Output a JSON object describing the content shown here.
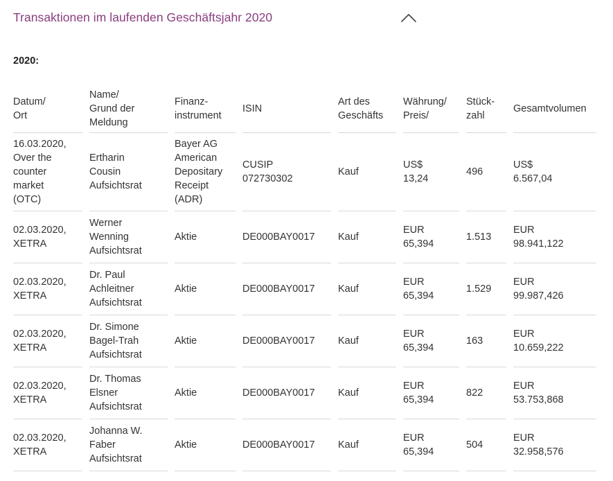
{
  "accordion": {
    "title": "Transaktionen im laufenden Geschäftsjahr 2020",
    "expanded": true,
    "accent_color": "#8a3d7f"
  },
  "section": {
    "year_label": "2020:"
  },
  "table": {
    "headers": [
      "Datum/\nOrt",
      "Name/\nGrund der\nMeldung",
      "Finanz-\ninstrument",
      "ISIN",
      "Art des\nGeschäfts",
      "Währung/\nPreis/",
      "Stück-\nzahl",
      "Gesamtvolumen"
    ],
    "rows": [
      {
        "date_place": "16.03.2020,\nOver the\ncounter\nmarket\n(OTC)",
        "name_reason": "Ertharin\nCousin\nAufsichtsrat",
        "instrument": "Bayer AG\nAmerican\nDepositary\nReceipt\n(ADR)",
        "isin": "CUSIP\n072730302",
        "type": "Kauf",
        "currency_price": "US$\n13,24",
        "quantity": "496",
        "total_volume": "US$\n6.567,04"
      },
      {
        "date_place": "02.03.2020,\nXETRA",
        "name_reason": "Werner\nWenning\nAufsichtsrat",
        "instrument": "Aktie",
        "isin": "DE000BAY0017",
        "type": "Kauf",
        "currency_price": "EUR\n65,394",
        "quantity": "1.513",
        "total_volume": "EUR\n98.941,122"
      },
      {
        "date_place": "02.03.2020,\nXETRA",
        "name_reason": "Dr. Paul\nAchleitner\nAufsichtsrat",
        "instrument": "Aktie",
        "isin": "DE000BAY0017",
        "type": "Kauf",
        "currency_price": "EUR\n65,394",
        "quantity": "1.529",
        "total_volume": "EUR\n99.987,426"
      },
      {
        "date_place": "02.03.2020,\nXETRA",
        "name_reason": "Dr. Simone\nBagel-Trah\nAufsichtsrat",
        "instrument": "Aktie",
        "isin": "DE000BAY0017",
        "type": "Kauf",
        "currency_price": "EUR\n65,394",
        "quantity": "163",
        "total_volume": "EUR\n10.659,222"
      },
      {
        "date_place": "02.03.2020,\nXETRA",
        "name_reason": "Dr. Thomas\nElsner\nAufsichtsrat",
        "instrument": "Aktie",
        "isin": "DE000BAY0017",
        "type": "Kauf",
        "currency_price": "EUR\n65,394",
        "quantity": "822",
        "total_volume": "EUR\n53.753,868"
      },
      {
        "date_place": "02.03.2020,\nXETRA",
        "name_reason": "Johanna W.\nFaber\nAufsichtsrat",
        "instrument": "Aktie",
        "isin": "DE000BAY0017",
        "type": "Kauf",
        "currency_price": "EUR\n65,394",
        "quantity": "504",
        "total_volume": "EUR\n32.958,576"
      }
    ]
  }
}
